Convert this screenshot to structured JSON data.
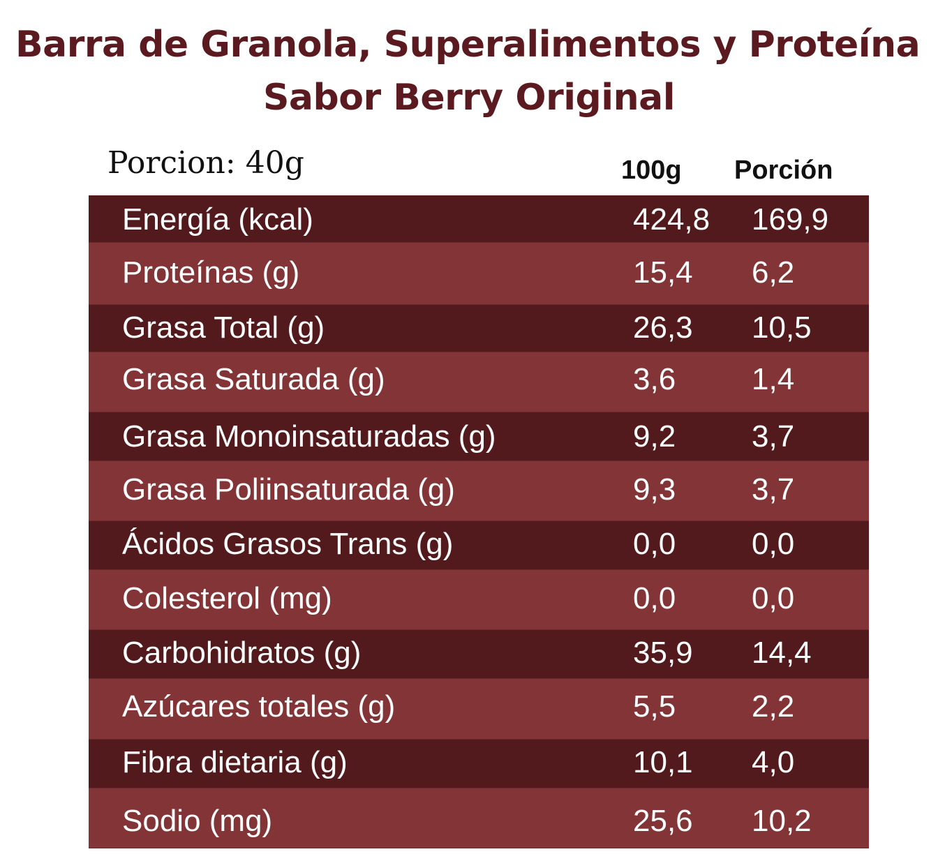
{
  "title": {
    "line1": "Barra de Granola, Superalimentos y Proteína",
    "line2": "Sabor Berry Original"
  },
  "portion_label": "Porcion: 40g",
  "columns": {
    "per_100g": "100g",
    "per_portion": "Porción"
  },
  "rows": [
    {
      "nutrient": "Energía (kcal)",
      "per_100g": "424,8",
      "per_portion": "169,9"
    },
    {
      "nutrient": "Proteínas (g)",
      "per_100g": "15,4",
      "per_portion": "6,2"
    },
    {
      "nutrient": "Grasa Total (g)",
      "per_100g": "26,3",
      "per_portion": "10,5"
    },
    {
      "nutrient": "Grasa Saturada (g)",
      "per_100g": "3,6",
      "per_portion": "1,4"
    },
    {
      "nutrient": "Grasa Monoinsaturadas (g)",
      "per_100g": "9,2",
      "per_portion": "3,7"
    },
    {
      "nutrient": "Grasa Poliinsaturada (g)",
      "per_100g": "9,3",
      "per_portion": "3,7"
    },
    {
      "nutrient": "Ácidos Grasos Trans (g)",
      "per_100g": "0,0",
      "per_portion": "0,0"
    },
    {
      "nutrient": "Colesterol (mg)",
      "per_100g": "0,0",
      "per_portion": "0,0"
    },
    {
      "nutrient": "Carbohidratos (g)",
      "per_100g": "35,9",
      "per_portion": "14,4"
    },
    {
      "nutrient": "Azúcares totales (g)",
      "per_100g": "5,5",
      "per_portion": "2,2"
    },
    {
      "nutrient": "Fibra dietaria (g)",
      "per_100g": "10,1",
      "per_portion": "4,0"
    },
    {
      "nutrient": "Sodio (mg)",
      "per_100g": "25,6",
      "per_portion": "10,2"
    }
  ],
  "colors": {
    "title": "#5a1a1f",
    "row_dark": "#521a1c",
    "row_light": "#823437",
    "row_text": "#ffffff"
  }
}
